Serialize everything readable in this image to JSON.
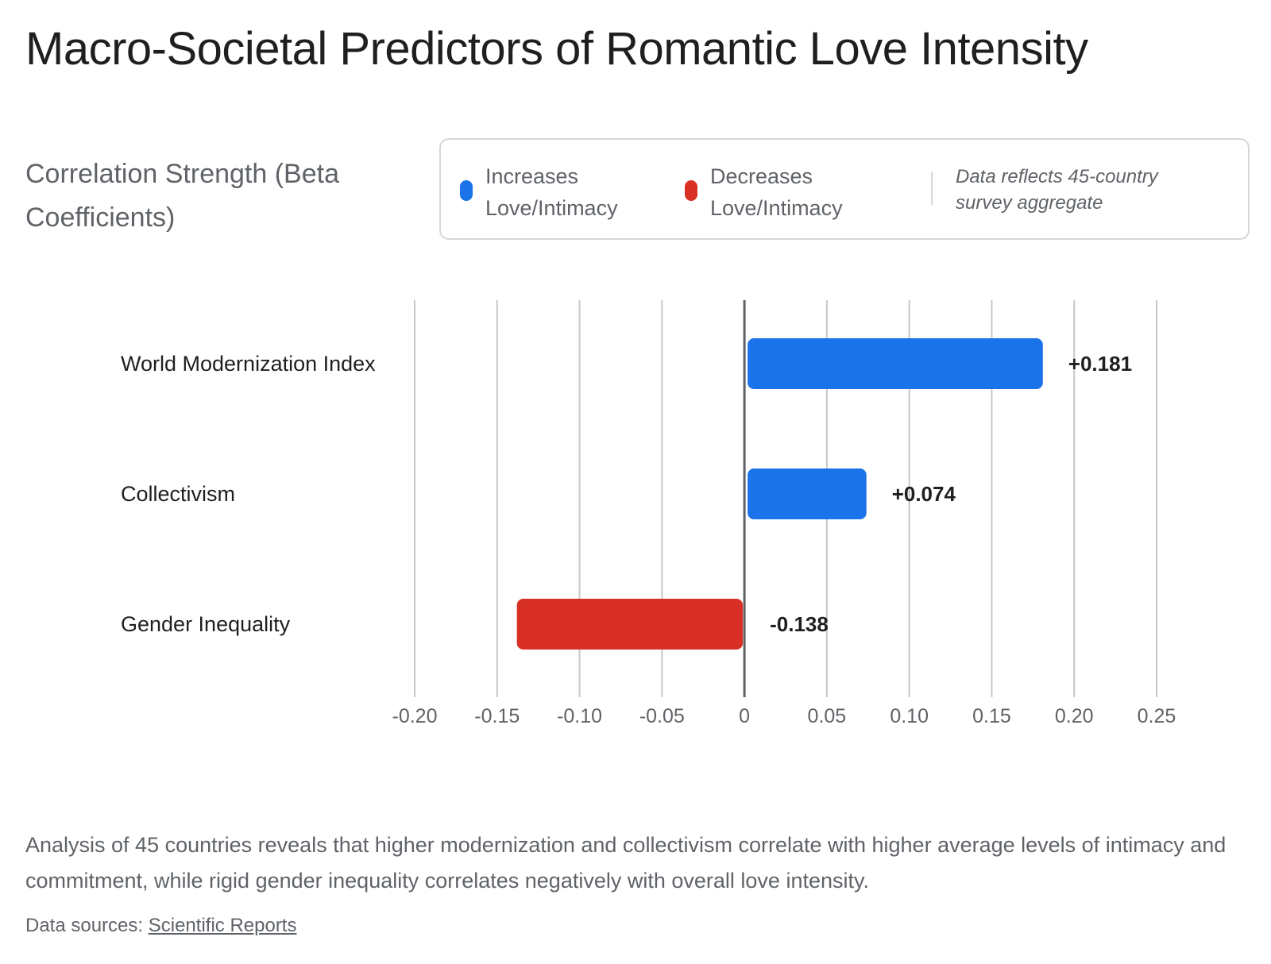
{
  "title": "Macro-Societal Predictors of Romantic Love Intensity",
  "subtitle": "Correlation Strength (Beta Coefficients)",
  "legend": {
    "increase_label": "Increases Love/Intimacy",
    "decrease_label": "Decreases Love/Intimacy",
    "note": "Data reflects 45-country survey aggregate"
  },
  "colors": {
    "positive": "#1a73e8",
    "negative": "#d93025",
    "gridline": "#c8c8c8",
    "zero_line": "#5f6368"
  },
  "chart_data": {
    "type": "bar",
    "orientation": "horizontal",
    "categories": [
      "World Modernization Index",
      "Collectivism",
      "Gender Inequality"
    ],
    "values": [
      0.181,
      0.074,
      -0.138
    ],
    "data_labels": [
      "+0.181",
      "+0.074",
      "-0.138"
    ],
    "xlim": [
      -0.2,
      0.25
    ],
    "ticks": [
      -0.2,
      -0.15,
      -0.1,
      -0.05,
      0,
      0.05,
      0.1,
      0.15,
      0.2,
      0.25
    ],
    "tick_labels": [
      "-0.20",
      "-0.15",
      "-0.10",
      "-0.05",
      "0",
      "0.05",
      "0.10",
      "0.15",
      "0.20",
      "0.25"
    ],
    "grid": true,
    "legend_position": "top-right"
  },
  "caption": "Analysis of 45 countries reveals that higher modernization and collectivism correlate with higher average levels of intimacy and commitment, while rigid gender inequality correlates negatively with overall love intensity.",
  "sources": {
    "prefix": "Data sources: ",
    "link_label": "Scientific Reports"
  }
}
